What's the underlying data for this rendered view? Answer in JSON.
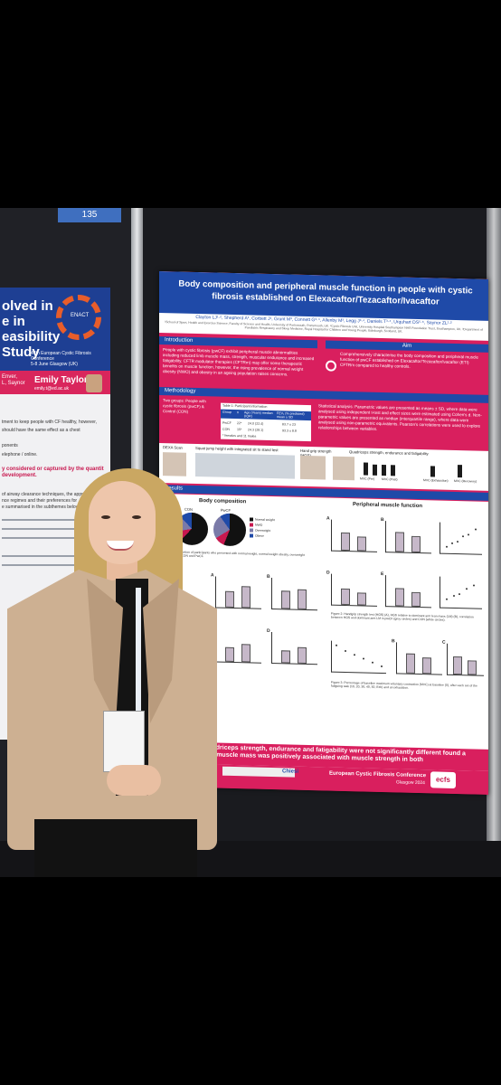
{
  "left_poster": {
    "title": "olved in\ne in\neasibility\nStudy",
    "logo_text": "ENACT",
    "conference": "47th European Cystic Fibrosis Conference\n5-8 June Glasgow (UK)",
    "authors": "Enver,\nL, Saynor",
    "presenter": "Emily Taylor",
    "email": "emily.t@ed.ac.uk",
    "text_1": "tment to keep people with CF healthy, however,",
    "text_2": "should have the same effect as a chest",
    "text_3": "ponents",
    "text_4": "elephone / online.",
    "highlight": "y considered or captured by the quantit development.",
    "text_5": "of airway clearance techniques, the appr",
    "text_6": "nce regimes and their preferences for",
    "text_7": "e summarised in the subthemes below"
  },
  "board_number": "135",
  "poster": {
    "title": "Body composition and peripheral muscle function in people with cystic fibrosis established on Elexacaftor/Tezacaftor/Ivacaftor",
    "authors": "Clayton LJ¹·², Shepherd A¹, Corbett J¹, Grunt M³, Connett G³·⁴, Allenby M³, Legg J³·⁴, Daniels T³·⁴, Urquhart DS⁵·⁶, Saynor ZL¹·²",
    "affiliations": "¹School of Sport, Health and Exercise Science, Faculty of Science and Health, University of Portsmouth, Portsmouth, UK. ²Cystic Fibrosis Unit, University Hospital Southampton NHS Foundation Trust, Southampton, UK. ³Department of Paediatric Respiratory and Sleep Medicine, Royal Hospital for Children and Young People, Edinburgh, Scotland, UK.",
    "intro_label": "Introduction",
    "intro_text": "People with cystic fibrosis (pwCF) exhibit peripheral muscle abnormalities including reduced limb muscle mass, strength, muscular endurance and increased fatigability. CFTR modulator therapies (CFTRm) may offer some therapeutic benefits on muscle function, however, the rising prevalence of normal weight obesity (NWO) and obesity in an ageing population raises concerns.",
    "aim_label": "Aim",
    "aim_text": "Comprehensively characterise the body composition and peripheral muscle function of pwCF established on Elexacaftor/Tezacaftor/Ivacaftor (ETI) CFTRm compared to healthy controls.",
    "methodology_label": "Methodology",
    "groups_text": "Two groups: People with cystic fibrosis (pwCF) & Control (CON)",
    "table": {
      "caption": "Table 1: Participant information",
      "headers": [
        "Group",
        "n",
        "Age (Years) median (IQR)",
        "FEV₁ (% predicted) mean ± SD"
      ],
      "rows": [
        [
          "PwCF",
          "22*",
          "24.0 (22.4)",
          "83.7 ± 23"
        ],
        [
          "CON",
          "15*",
          "24.3 (28.1)",
          "93.3 ± 8.8"
        ]
      ],
      "note": "* females and 11 males"
    },
    "stats_text": "Statistical analysis: Parametric values are presented as means ± SD, where data were analysed using independent t-test and effect sizes were estimated using Cohen's d. Non-parametric values are presented as median (interquartile range), where data were analysed using non-parametric equivalents. Pearson's correlations were used to explore relationships between variables.",
    "methods": {
      "dexa": "DEXA Scan",
      "squat": "Squat jump height with integrated sit to stand test",
      "hand_grip": "Hand grip strength (HGS)",
      "quad": "Quadriceps strength, endurance and fatigability",
      "mvc_pre": "MVC (Pre)",
      "mvc_post": "MVC (Post)",
      "mvc_exh": "MVC (Exhaustion)",
      "mvc_rec": "MVC (Recovery)"
    },
    "results_label": "Results",
    "body_comp_label": "Body composition",
    "periph_label": "Peripheral muscle function",
    "pie_labels": [
      "CON",
      "PwCF"
    ],
    "pie_legend": [
      "Normal weight",
      "NWO",
      "Overweight",
      "Obese"
    ],
    "panel_letters": [
      "A",
      "B",
      "C",
      "D",
      "E",
      "F"
    ],
    "axis_groups": [
      "CON",
      "PwCF"
    ],
    "fig1_caption": "Figure 1: Proportion of participants who presented with normal weight, normal weight obesity, overweight and obese in CON and PwCF.",
    "fig2_caption": "Figure 2: Handgrip strength test (HGS) (A), HGS relative to dominant arm lean mass (LM) (B), correlation between HGS and dominant arm LM in pwCF (grey circles) and CON (white circles).",
    "fig3_caption": "Figure 3: Percentage of baseline maximum voluntary contraction (MVC) at baseline (0), after each set of the fatiguing task (10, 20, 30, 40, 50, Exh) and at exhaustion.",
    "conclusion": "strength and quadriceps strength, endurance and fatigability were not significantly different found a larger peripheral muscle mass was positively associated with muscle strength in both",
    "footer_sponsor": "Chiesi",
    "footer_conf": "European Cystic Fibrosis Conference",
    "footer_city": "Glasgow 2024",
    "footer_logo": "ecfs"
  },
  "colors": {
    "poster_magenta": "#d91f5e",
    "poster_blue": "#1f4aa8",
    "blazer": "#cdb092",
    "hair": "#caa762"
  }
}
